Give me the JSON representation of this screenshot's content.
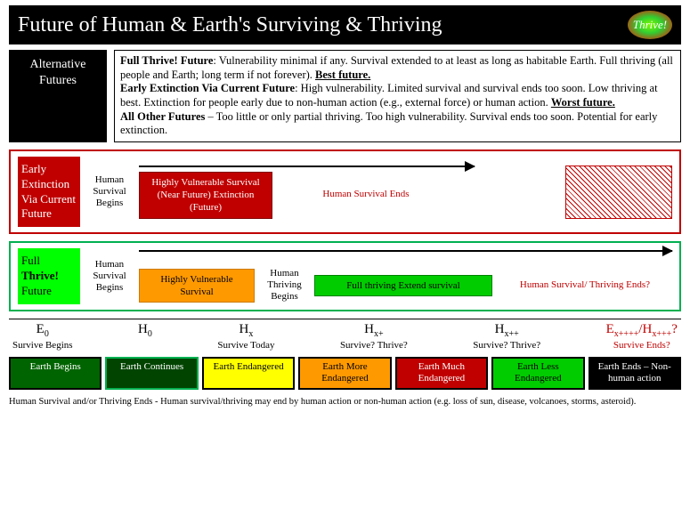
{
  "header": {
    "title": "Future of Human & Earth's Surviving & Thriving",
    "logo_text": "Thrive!",
    "logo_gradient": [
      "#7CFC00",
      "#32CD32",
      "#FF0000"
    ]
  },
  "alternative_label": "Alternative Futures",
  "description": {
    "p1_bold": "Full Thrive! Future",
    "p1_text": ": Vulnerability minimal if any. Survival extended to at least as long as habitable Earth. Full thriving (all people and Earth; long term if not forever). ",
    "p1_end": "Best future.",
    "p2_bold": "Early Extinction Via Current Future",
    "p2_text": ": High vulnerability. Limited survival and survival ends too soon. Low thriving at best. Extinction for people early due to non-human action (e.g., external force) or human action. ",
    "p2_end": "Worst future.",
    "p3_bold": "All Other Futures",
    "p3_text": " – Too little or only partial thriving. Too high vulnerability. Survival ends too soon. Potential for early extinction."
  },
  "scenario1": {
    "label": "Early Extinction Via Current Future",
    "border_color": "#C00000",
    "label_bg": "#C00000",
    "begins": "Human Survival Begins",
    "phase1": "Highly Vulnerable Survival (Near Future) Extinction (Future)",
    "phase1_bg": "#C00000",
    "ends": "Human Survival Ends",
    "ends_color": "#C00000",
    "arrow_width_pct": 80
  },
  "scenario2": {
    "label_l1": "Full",
    "label_l2": "Thrive!",
    "label_l3": "Future",
    "border_color": "#00B050",
    "label_bg": "#00FF00",
    "begins": "Human Survival Begins",
    "phase1": "Highly Vulnerable Survival",
    "phase1_bg": "#FF9900",
    "mid": "Human Thriving Begins",
    "phase2": "Full thriving Extend survival",
    "phase2_bg": "#00CC00",
    "ends": "Human Survival/ Thriving Ends?",
    "ends_color": "#C00000",
    "arrow_width_pct": 100
  },
  "axis": [
    {
      "sym": "E",
      "sub": "0",
      "caption": "Survive Begins",
      "red": false
    },
    {
      "sym": "H",
      "sub": "0",
      "caption": "",
      "red": false
    },
    {
      "sym": "H",
      "sub": "x",
      "caption": "Survive Today",
      "red": false
    },
    {
      "sym": "H",
      "sub": "x+",
      "caption": "Survive? Thrive?",
      "red": false
    },
    {
      "sym": "H",
      "sub": "x++",
      "caption": "Survive? Thrive?",
      "red": false
    },
    {
      "sym": "E",
      "sub": "x++++",
      "sym2": "/H",
      "sub2": "x+++",
      "tail": "?",
      "caption": "Survive Ends?",
      "red": true
    }
  ],
  "earth_boxes": [
    {
      "text": "Earth Begins",
      "bg": "#006400",
      "border": "#000000"
    },
    {
      "text": "Earth Continues",
      "bg": "#004400",
      "border": "#00B050"
    },
    {
      "text": "Earth Endangered",
      "bg": "#FFFF00",
      "fg": "#000000",
      "border": "#000000"
    },
    {
      "text": "Earth More Endangered",
      "bg": "#FF9900",
      "fg": "#000000",
      "border": "#000000"
    },
    {
      "text": "Earth Much Endangered",
      "bg": "#C00000",
      "border": "#000000"
    },
    {
      "text": "Earth Less Endangered",
      "bg": "#00CC00",
      "fg": "#000000",
      "border": "#000000"
    },
    {
      "text": "Earth Ends – Non-human action",
      "bg": "#000000",
      "border": "#000000"
    }
  ],
  "footnote": "Human Survival and/or Thriving Ends - Human survival/thriving may end by human action or non-human action (e.g. loss of sun, disease, volcanoes, storms, asteroid)."
}
